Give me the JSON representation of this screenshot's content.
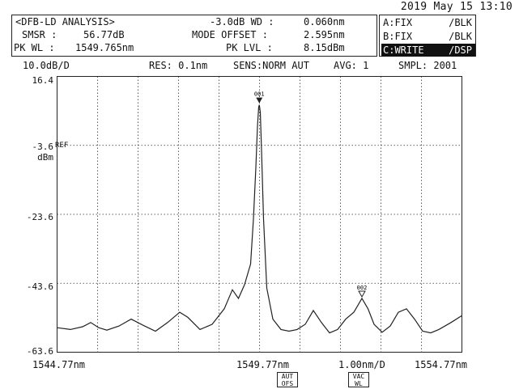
{
  "datetime": "2019 May 15 13:10",
  "analysis": {
    "title": "<DFB-LD ANALYSIS>",
    "smsr_label": "SMSR :",
    "smsr_value": "56.77dB",
    "pkwl_label": "PK WL :",
    "pkwl_value": "1549.765nm",
    "wd_label": "-3.0dB WD :",
    "wd_value": "0.060nm",
    "mode_offset_label": "MODE OFFSET :",
    "mode_offset_value": "2.595nm",
    "pklvl_label": "PK LVL :",
    "pklvl_value": "8.15dBm"
  },
  "traces": [
    {
      "name": "A:FIX",
      "mode": "/BLK",
      "active": false
    },
    {
      "name": "B:FIX",
      "mode": "/BLK",
      "active": false
    },
    {
      "name": "C:WRITE",
      "mode": "/DSP",
      "active": true
    }
  ],
  "header": {
    "scale": "10.0dB/D",
    "res": "RES: 0.1nm",
    "sens": "SENS:NORM AUT",
    "avg": "AVG:   1",
    "smpl": "SMPL: 2001"
  },
  "y_labels": {
    "top": "16.4",
    "ref": "-3.6",
    "ref_tag": "REF",
    "unit": "dBm",
    "l3": "-23.6",
    "l4": "-43.6",
    "bottom": "-63.6"
  },
  "x_labels": {
    "left": "1544.77nm",
    "center": "1549.77nm",
    "span": "1.00nm/D",
    "right": "1554.77nm"
  },
  "markers": {
    "m1": "001",
    "m2": "002"
  },
  "badges": {
    "b1_line1": "AUT",
    "b1_line2": "OFS",
    "b2_line1": "VAC",
    "b2_line2": "WL"
  },
  "chart_data": {
    "type": "line",
    "xlabel": "",
    "ylabel": "dBm",
    "xlim": [
      1544.77,
      1554.77
    ],
    "ylim": [
      -63.6,
      16.4
    ],
    "grid": true,
    "series": [
      {
        "x": [
          1544.77,
          1545.1,
          1545.4,
          1545.6,
          1545.8,
          1546.0,
          1546.3,
          1546.6,
          1546.9,
          1547.2,
          1547.5,
          1547.8,
          1548.0,
          1548.3,
          1548.6,
          1548.9,
          1549.1,
          1549.25,
          1549.4,
          1549.55,
          1549.62,
          1549.68,
          1549.72,
          1549.75,
          1549.765,
          1549.79,
          1549.82,
          1549.87,
          1549.95,
          1550.1,
          1550.3,
          1550.5,
          1550.7,
          1550.9,
          1551.1,
          1551.3,
          1551.5,
          1551.7,
          1551.9,
          1552.1,
          1552.3,
          1552.45,
          1552.6,
          1552.8,
          1553.0,
          1553.2,
          1553.4,
          1553.6,
          1553.8,
          1554.0,
          1554.2,
          1554.5,
          1554.77
        ],
        "y": [
          -56.5,
          -57.0,
          -56.2,
          -55.0,
          -56.5,
          -57.2,
          -56.0,
          -54.0,
          -55.8,
          -57.5,
          -55.0,
          -52.0,
          -53.5,
          -57.0,
          -55.5,
          -51.0,
          -45.5,
          -48.0,
          -44.0,
          -38.0,
          -25.0,
          -10.0,
          2.0,
          7.5,
          8.15,
          6.0,
          -5.0,
          -25.0,
          -45.0,
          -54.0,
          -57.0,
          -57.5,
          -57.0,
          -55.5,
          -51.5,
          -55.0,
          -58.0,
          -57.0,
          -54.0,
          -52.0,
          -48.0,
          -51.0,
          -55.5,
          -57.8,
          -56.0,
          -52.0,
          -51.0,
          -54.0,
          -57.5,
          -58.0,
          -57.0,
          -55.0,
          -53.0
        ]
      }
    ]
  }
}
